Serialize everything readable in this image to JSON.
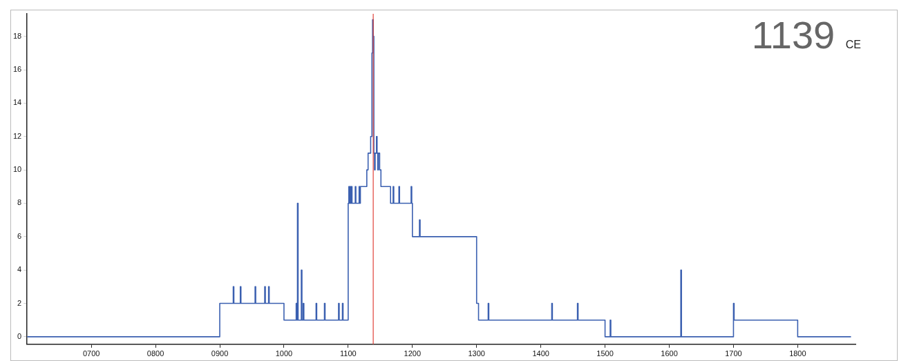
{
  "chart_data": {
    "type": "step",
    "x": [
      600,
      900,
      921,
      922,
      932,
      933,
      955,
      956,
      970,
      971,
      976,
      977,
      1000,
      1019,
      1020,
      1021,
      1022,
      1027,
      1028,
      1030,
      1031,
      1050,
      1051,
      1063,
      1064,
      1085,
      1086,
      1091,
      1092,
      1100,
      1101,
      1102,
      1103,
      1104,
      1105,
      1106,
      1111,
      1112,
      1117,
      1118,
      1119,
      1129,
      1131,
      1135,
      1137,
      1138,
      1139,
      1140,
      1141,
      1142,
      1144,
      1145,
      1146,
      1147,
      1149,
      1151,
      1166,
      1170,
      1171,
      1179,
      1180,
      1198,
      1199,
      1200,
      1211,
      1212,
      1300,
      1303,
      1318,
      1319,
      1417,
      1418,
      1457,
      1458,
      1500,
      1508,
      1509,
      1618,
      1619,
      1700,
      1701,
      1800,
      1883
    ],
    "series": [
      {
        "color": "#3a5fb0",
        "values": [
          0,
          2,
          3,
          2,
          3,
          2,
          3,
          2,
          3,
          2,
          3,
          2,
          1,
          2,
          1,
          8,
          1,
          4,
          1,
          2,
          1,
          2,
          1,
          2,
          1,
          2,
          1,
          2,
          1,
          8,
          9,
          8,
          9,
          8,
          9,
          8,
          9,
          8,
          9,
          8,
          9,
          10,
          11,
          12,
          17,
          19,
          18,
          11,
          10,
          11,
          12,
          11,
          10,
          11,
          10,
          9,
          8,
          9,
          8,
          9,
          8,
          9,
          8,
          6,
          7,
          6,
          2,
          1,
          2,
          1,
          2,
          1,
          2,
          1,
          0,
          1,
          0,
          4,
          0,
          2,
          1,
          0,
          0
        ]
      }
    ],
    "xlim": [
      600,
      1890
    ],
    "xticks": [
      {
        "value": 700,
        "label": "0700"
      },
      {
        "value": 800,
        "label": "0800"
      },
      {
        "value": 900,
        "label": "0900"
      },
      1000,
      1100,
      1200,
      1300,
      1400,
      1500,
      1600,
      1700,
      1800
    ],
    "ylim": [
      -0.45,
      19.35
    ],
    "yticks": [
      0,
      2,
      4,
      6,
      8,
      10,
      12,
      14,
      16,
      18
    ],
    "ref_lines": [
      {
        "axis": "x",
        "value": 1139,
        "color": "#e0433a"
      }
    ],
    "annotations": [
      "1139 CE"
    ],
    "grid": false,
    "legend": false,
    "marker": "none",
    "line_style": "solid"
  }
}
